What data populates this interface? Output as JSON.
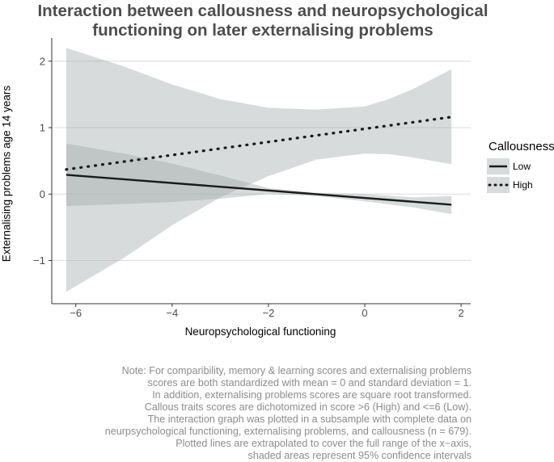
{
  "chart_data": {
    "type": "line",
    "title_lines": [
      "Interaction between callousness and neuropsychological",
      "functioning on later externalising problems"
    ],
    "xlabel": "Neuropsychological functioning",
    "ylabel": "Externalising problems age 14 years",
    "xlim": [
      -6.5,
      2.2
    ],
    "ylim": [
      -1.65,
      2.35
    ],
    "xticks": [
      -6,
      -4,
      -2,
      0,
      2
    ],
    "xtick_labels": [
      "−6",
      "−4",
      "−2",
      "0",
      "2"
    ],
    "yticks": [
      -1,
      0,
      1,
      2
    ],
    "ytick_labels": [
      "−1",
      "0",
      "1",
      "2"
    ],
    "grid": "horizontal",
    "legend_title": "Callousness",
    "legend_position": "right",
    "series": [
      {
        "name": "Low",
        "line_style": "solid",
        "color": "#1a1a1a",
        "x": [
          -6.2,
          1.8
        ],
        "y": [
          0.29,
          -0.16
        ],
        "ci_x": [
          -6.2,
          -5,
          -4,
          -3,
          -2,
          -1,
          0,
          1,
          1.8
        ],
        "ci_lower": [
          -0.18,
          -0.15,
          -0.12,
          -0.07,
          0.0,
          -0.03,
          -0.11,
          -0.2,
          -0.3
        ],
        "ci_upper": [
          0.76,
          0.61,
          0.46,
          0.28,
          0.09,
          0.02,
          0.0,
          -0.05,
          -0.03
        ]
      },
      {
        "name": "High",
        "line_style": "dotted",
        "color": "#1a1a1a",
        "x": [
          -6.2,
          1.8
        ],
        "y": [
          0.37,
          1.16
        ],
        "ci_x": [
          -6.2,
          -5,
          -4,
          -3,
          -2,
          -1,
          0,
          0.5,
          1,
          1.8
        ],
        "ci_lower": [
          -1.47,
          -0.96,
          -0.47,
          -0.05,
          0.27,
          0.52,
          0.61,
          0.6,
          0.55,
          0.45
        ],
        "ci_upper": [
          2.2,
          1.92,
          1.65,
          1.43,
          1.3,
          1.27,
          1.32,
          1.43,
          1.58,
          1.88
        ]
      }
    ]
  },
  "note_lines": [
    "Note: For comparibility, memory & learning scores and externalising problems",
    "scores are both standardized with mean = 0 and standard deviation = 1.",
    "In addition, externalising problems scores are square root transformed.",
    "Callous traits scores are dichotomized in score >6 (High) and <=6 (Low).",
    "The interaction graph was plotted in a subsample with complete data on",
    "neurpsychological functioning, externalising problems, and callousness (n = 679).",
    "Plotted lines are extrapolated to cover the full range of the x−axis,",
    "shaded areas represent 95% confidence intervals"
  ]
}
